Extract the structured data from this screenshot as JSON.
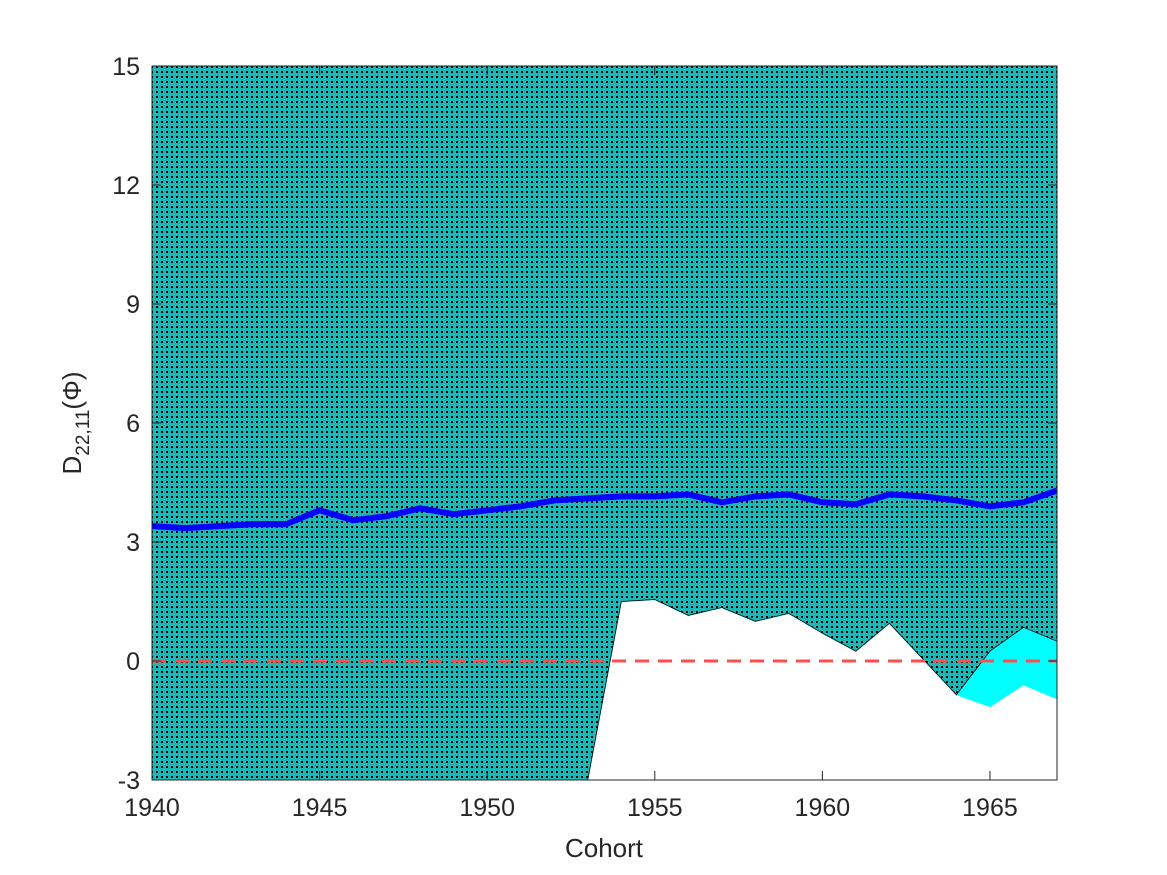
{
  "chart_data": {
    "type": "area",
    "xlabel": "Cohort",
    "ylabel": {
      "base": "D",
      "sub": "22,11",
      "suffix": "(Φ)"
    },
    "xlim": [
      1940,
      1967
    ],
    "ylim": [
      -3,
      15
    ],
    "xticks": [
      "1940",
      "1945",
      "1950",
      "1955",
      "1960",
      "1965"
    ],
    "yticks": [
      "-3",
      "0",
      "3",
      "6",
      "9",
      "12",
      "15"
    ],
    "colors": {
      "dotted_region": "#1cb8b8",
      "dotted_pattern": "#000000",
      "cyan_band": "#00ffff",
      "line": "#0000ff",
      "zero_line": "#ff4d4d"
    },
    "x": [
      1940,
      1941,
      1942,
      1943,
      1944,
      1945,
      1946,
      1947,
      1948,
      1949,
      1950,
      1951,
      1952,
      1953,
      1954,
      1955,
      1956,
      1957,
      1958,
      1959,
      1960,
      1961,
      1962,
      1963,
      1964,
      1965,
      1966,
      1967
    ],
    "series": [
      {
        "values": [
          3.4,
          3.35,
          3.4,
          3.45,
          3.45,
          3.8,
          3.55,
          3.65,
          3.85,
          3.7,
          3.8,
          3.9,
          4.05,
          4.1,
          4.15,
          4.15,
          4.2,
          4.0,
          4.15,
          4.2,
          4.0,
          3.95,
          4.2,
          4.15,
          4.05,
          3.9,
          4.0,
          4.3
        ]
      }
    ],
    "cyan_band": {
      "upper": [
        15,
        15,
        15,
        15,
        15,
        15,
        15,
        15,
        15,
        15,
        15,
        15,
        15,
        15,
        15,
        15,
        15,
        15,
        15,
        15,
        15,
        15,
        15,
        15,
        15,
        15,
        15,
        15
      ],
      "lower": [
        -3,
        -3,
        -3,
        -3,
        -3,
        -3,
        -3,
        -3,
        -3,
        -3,
        -3,
        -3,
        -3,
        -3,
        1.5,
        1.55,
        1.15,
        1.35,
        1.0,
        1.2,
        0.7,
        0.25,
        0.95,
        0.05,
        -0.85,
        -1.15,
        -0.6,
        -0.95
      ]
    },
    "dotted_region": {
      "upper": [
        15,
        15,
        15,
        15,
        15,
        15,
        15,
        15,
        15,
        15,
        15,
        15,
        15,
        15,
        15,
        15,
        15,
        15,
        15,
        15,
        15,
        15,
        15,
        15,
        15,
        15,
        15,
        15
      ],
      "lower": [
        -3,
        -3,
        -3,
        -3,
        -3,
        -3,
        -3,
        -3,
        -3,
        -3,
        -3,
        -3,
        -3,
        -3,
        1.5,
        1.55,
        1.15,
        1.35,
        1.0,
        1.2,
        0.7,
        0.25,
        0.95,
        0.05,
        -0.85,
        0.25,
        0.85,
        0.5
      ]
    },
    "reference_line": 0
  }
}
